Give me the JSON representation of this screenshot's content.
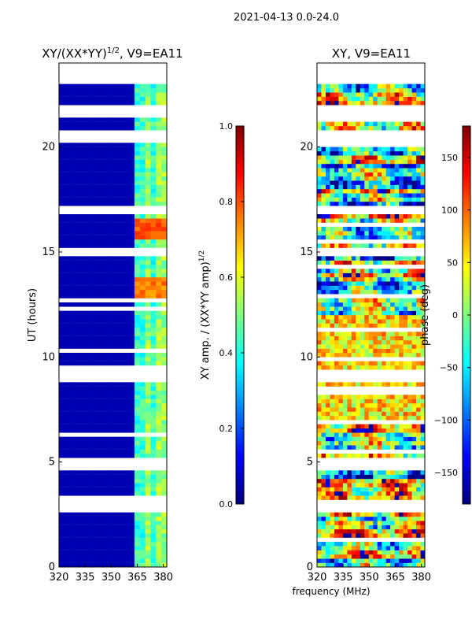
{
  "suptitle": "2021-04-13 0.0-24.0",
  "shared_xlabel": "frequency (MHz)",
  "chart_data": [
    {
      "type": "heatmap",
      "title_main": "XY/(XX*YY)",
      "title_sup": "1/2",
      "title_tail": ", V9=EA11",
      "ylabel": "UT (hours)",
      "xlim": [
        320,
        382
      ],
      "ylim": [
        0,
        24
      ],
      "x_ticks": [
        320,
        335,
        350,
        365,
        380
      ],
      "y_ticks": [
        0,
        5,
        10,
        15,
        20
      ],
      "colorbar": {
        "label_main": "XY amp. / (XX*YY amp)",
        "label_sup": "1/2",
        "range": [
          0.0,
          1.0
        ],
        "ticks": [
          0.0,
          0.2,
          0.4,
          0.6,
          0.8,
          1.0
        ],
        "tick_labels": [
          "0.0",
          "0.2",
          "0.4",
          "0.6",
          "0.8",
          "1.0"
        ],
        "colormap": "jet"
      },
      "data_coverage_ut": [
        0.0,
        22.8
      ],
      "blank_ut_ranges": [
        [
          2.7,
          3.2
        ],
        [
          4.6,
          5.2
        ],
        [
          8.9,
          9.4
        ],
        [
          14.8,
          15.1
        ],
        [
          16.8,
          17.2
        ],
        [
          20.2,
          20.8
        ],
        [
          21.5,
          22.0
        ]
      ],
      "hot_bands": [
        {
          "ut": [
            15.5,
            16.6
          ],
          "freq": [
            363,
            381
          ],
          "value": 0.85
        },
        {
          "ut": [
            12.5,
            13.8
          ],
          "freq": [
            363,
            381
          ],
          "value": 0.8
        }
      ],
      "base_value": 0.05
    },
    {
      "type": "heatmap",
      "title_main": "XY, V9=EA11",
      "ylabel": "",
      "xlim": [
        320,
        382
      ],
      "ylim": [
        0,
        24
      ],
      "x_ticks": [
        320,
        335,
        350,
        365,
        380
      ],
      "y_ticks": [
        0,
        5,
        10,
        15,
        20
      ],
      "colorbar": {
        "label_main": "phase (deg)",
        "range": [
          -180,
          180
        ],
        "ticks": [
          -150,
          -100,
          -50,
          0,
          50,
          100,
          150
        ],
        "tick_labels": [
          "−150",
          "−100",
          "−50",
          "0",
          "50",
          "100",
          "150"
        ],
        "colormap": "jet"
      },
      "data_coverage_ut": [
        0.0,
        22.8
      ],
      "blank_ut_ranges": [
        [
          2.7,
          3.2
        ],
        [
          4.6,
          5.2
        ],
        [
          8.9,
          9.4
        ],
        [
          14.8,
          15.1
        ],
        [
          16.8,
          17.2
        ],
        [
          20.2,
          20.8
        ],
        [
          21.5,
          22.0
        ]
      ]
    }
  ]
}
